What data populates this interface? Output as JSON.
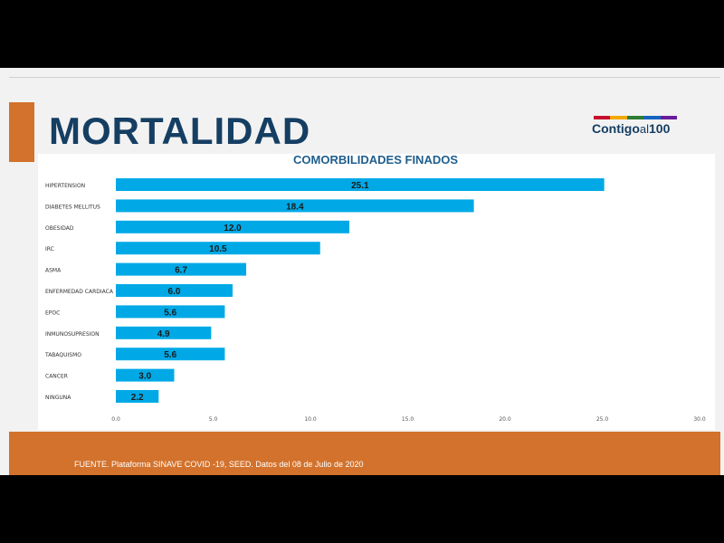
{
  "slide": {
    "title": "MORTALIDAD",
    "logo": {
      "main": "Contigo",
      "small": "al",
      "num": "100",
      "bar_colors": [
        "#c8102e",
        "#f2a900",
        "#2e7d32",
        "#1565c0",
        "#6a1b9a"
      ]
    },
    "source": "FUENTE. Plataforma SINAVE COVID -19, SEED. Datos del 08 de Julio de 2020"
  },
  "colors": {
    "title": "#153e63",
    "accent": "#d2722c",
    "bar": "#00a9e6",
    "chart_title": "#1f5e8c"
  },
  "chart_data": {
    "type": "bar",
    "orientation": "horizontal",
    "title": "COMORBILIDADES FINADOS",
    "categories": [
      "HIPERTENSION",
      "DIABETES MELLITUS",
      "OBESIDAD",
      "IRC",
      "ASMA",
      "ENFERMEDAD CARDIACA",
      "EPOC",
      "INMUNOSUPRESION",
      "TABAQUISMO",
      "CANCER",
      "NINGUNA"
    ],
    "values": [
      25.1,
      18.4,
      12.0,
      10.5,
      6.7,
      6.0,
      5.6,
      4.9,
      5.6,
      3.0,
      2.2
    ],
    "value_labels": [
      "25.1",
      "18.4",
      "12.0",
      "10.5",
      "6.7",
      "6.0",
      "5.6",
      "4.9",
      "5.6",
      "3.0",
      "2.2"
    ],
    "xlim": [
      0,
      30
    ],
    "xticks": [
      "0.0",
      "5.0",
      "10.0",
      "15.0",
      "20.0",
      "25.0",
      "30.0"
    ],
    "grid": false,
    "legend": "none"
  }
}
